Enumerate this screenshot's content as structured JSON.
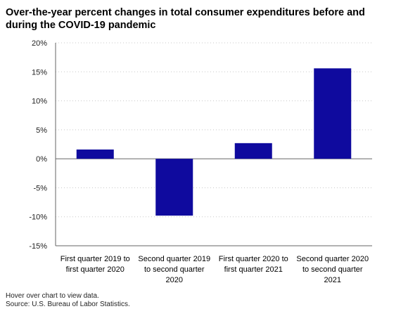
{
  "header": {
    "title_line1": "Over-the-year percent changes in total consumer expenditures before and",
    "title_line2": "during the COVID-19 pandemic"
  },
  "footer": {
    "hover_note": "Hover over chart to view data.",
    "source": "Source: U.S. Bureau of Labor Statistics."
  },
  "colors": {
    "bar": "#0f0a9e",
    "grid": "#c8c8c8",
    "axis": "#666666"
  },
  "chart_data": {
    "type": "bar",
    "title": "Over-the-year percent changes in total consumer expenditures before and during the COVID-19 pandemic",
    "categories": [
      [
        "First quarter 2019 to",
        "first quarter 2020"
      ],
      [
        "Second quarter 2019",
        "to second quarter",
        "2020"
      ],
      [
        "First quarter 2020 to",
        "first quarter 2021"
      ],
      [
        "Second quarter 2020",
        "to second quarter",
        "2021"
      ]
    ],
    "values": [
      1.6,
      -9.8,
      2.7,
      15.6
    ],
    "ylim": [
      -15,
      20
    ],
    "yticks": [
      20,
      15,
      10,
      5,
      0,
      -5,
      -10,
      -15
    ],
    "ytick_labels": [
      "20%",
      "15%",
      "10%",
      "5%",
      "0%",
      "-5%",
      "-10%",
      "-15%"
    ],
    "xlabel": "",
    "ylabel": "",
    "grid": true,
    "legend": "none"
  }
}
